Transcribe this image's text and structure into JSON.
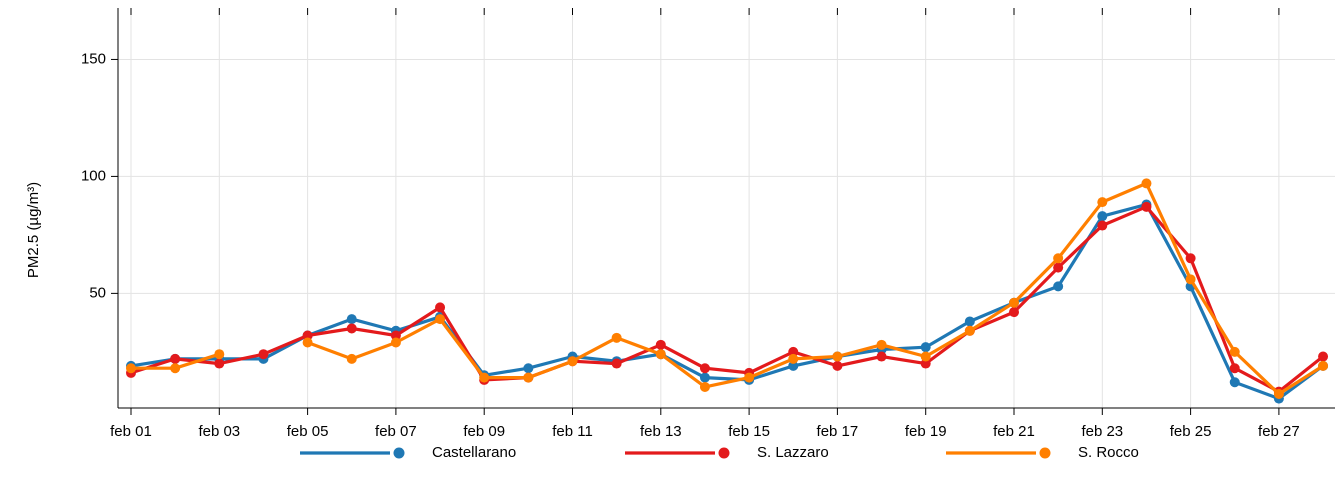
{
  "chart_data": {
    "type": "line",
    "y_label": "PM2.5 (µg/m³)",
    "categories": [
      "feb 01",
      null,
      "feb 03",
      null,
      "feb 05",
      null,
      "feb 07",
      null,
      "feb 09",
      null,
      "feb 11",
      null,
      "feb 13",
      null,
      "feb 15",
      null,
      "feb 17",
      null,
      "feb 19",
      null,
      "feb 21",
      null,
      "feb 23",
      null,
      "feb 25",
      null,
      "feb 27",
      null
    ],
    "series": [
      {
        "name": "Castellarano",
        "color": "#1f78b4",
        "values": [
          19,
          22,
          22,
          22,
          32,
          39,
          34,
          40,
          15,
          18,
          23,
          21,
          24,
          14,
          13,
          19,
          23,
          26,
          27,
          38,
          46,
          53,
          83,
          88,
          53,
          12,
          5,
          19
        ]
      },
      {
        "name": "S. Lazzaro",
        "color": "#e31a1c",
        "values": [
          16,
          22,
          20,
          24,
          32,
          35,
          32,
          44,
          13,
          14,
          21,
          20,
          28,
          18,
          16,
          25,
          19,
          23,
          20,
          34,
          42,
          61,
          79,
          87,
          65,
          18,
          8,
          23
        ]
      },
      {
        "name": "S. Rocco",
        "color": "#ff7f00",
        "values": [
          18,
          18,
          24,
          null,
          29,
          22,
          29,
          39,
          14,
          14,
          21,
          31,
          24,
          10,
          14,
          22,
          23,
          28,
          23,
          34,
          46,
          65,
          89,
          97,
          56,
          25,
          7,
          19
        ]
      }
    ],
    "ylim": [
      1,
      169
    ],
    "yticks": [
      50,
      100,
      150
    ],
    "grid": true,
    "legend": "bottom"
  }
}
